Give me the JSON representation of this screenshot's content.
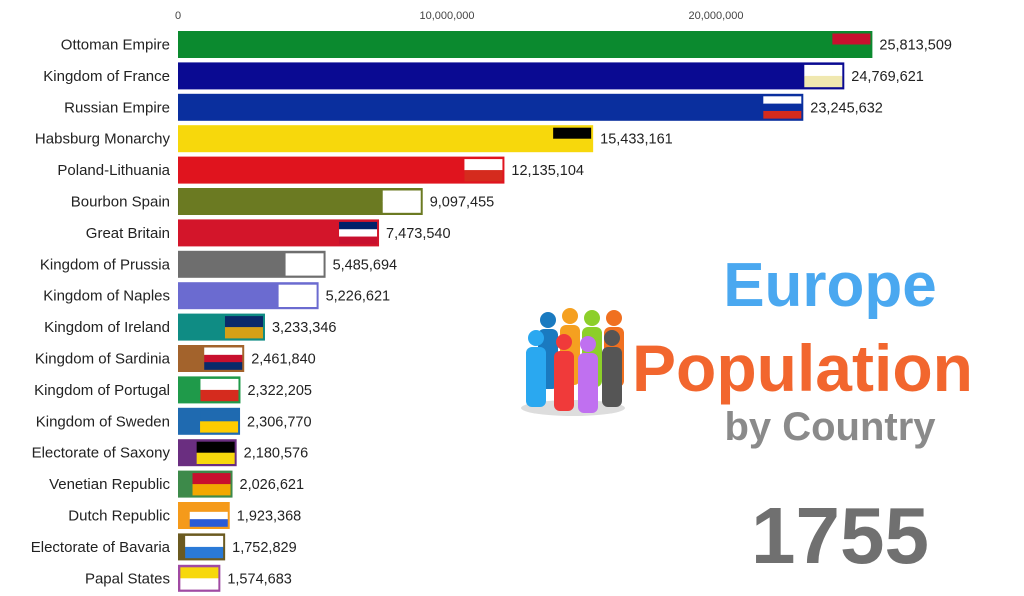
{
  "chart_data": {
    "type": "bar",
    "orientation": "horizontal",
    "x_ticks": [
      0,
      10000000,
      20000000
    ],
    "x_tick_labels": [
      "0",
      "10,000,000",
      "20,000,000"
    ],
    "xlim": [
      0,
      26000000
    ],
    "axis_position": "top",
    "grid": false,
    "categories": [
      "Ottoman Empire",
      "Kingdom of France",
      "Russian Empire",
      "Habsburg Monarchy",
      "Poland-Lithuania",
      "Bourbon Spain",
      "Great Britain",
      "Kingdom of Prussia",
      "Kingdom of Naples",
      "Kingdom of Ireland",
      "Kingdom of Sardinia",
      "Kingdom of Portugal",
      "Kingdom of Sweden",
      "Electorate of Saxony",
      "Venetian Republic",
      "Dutch Republic",
      "Electorate of Bavaria",
      "Papal States"
    ],
    "values": [
      25813509,
      24769621,
      23245632,
      15433161,
      12135104,
      9097455,
      7473540,
      5485694,
      5226621,
      3233346,
      2461840,
      2322205,
      2306770,
      2180576,
      2026621,
      1923368,
      1752829,
      1574683
    ],
    "value_labels": [
      "25,813,509",
      "24,769,621",
      "23,245,632",
      "15,433,161",
      "12,135,104",
      "9,097,455",
      "7,473,540",
      "5,485,694",
      "5,226,621",
      "3,233,346",
      "2,461,840",
      "2,322,205",
      "2,306,770",
      "2,180,576",
      "2,026,621",
      "1,923,368",
      "1,752,829",
      "1,574,683"
    ],
    "colors": [
      "#0b8a2f",
      "#0a0a92",
      "#0a2f9e",
      "#f7d80c",
      "#e0141e",
      "#6b7a22",
      "#d3152a",
      "#6e6e6e",
      "#6b6bd0",
      "#0f8c84",
      "#a3632c",
      "#1f9a4a",
      "#1f6ab0",
      "#6a2e80",
      "#3d8a4a",
      "#f59a1a",
      "#6b5a20",
      "#a04aa3"
    ],
    "flags": [
      [
        "#c8102e",
        "#0b8a2f"
      ],
      [
        "#ffffff",
        "#f0e8b0"
      ],
      [
        "#ffffff",
        "#0a2fa0",
        "#d52b1e"
      ],
      [
        "#000000",
        "#f7d80c"
      ],
      [
        "#ffffff",
        "#d52b1e"
      ],
      [
        "#ffffff",
        "#ffffff"
      ],
      [
        "#012169",
        "#ffffff",
        "#c8102e"
      ],
      [
        "#ffffff",
        "#ffffff"
      ],
      [
        "#ffffff",
        "#ffffff"
      ],
      [
        "#0a2a6a",
        "#d4a017"
      ],
      [
        "#ffffff",
        "#c8102e",
        "#0a2a6a"
      ],
      [
        "#ffffff",
        "#d52b1e"
      ],
      [
        "#1f6ab0",
        "#fecc00"
      ],
      [
        "#000000",
        "#f7d80c"
      ],
      [
        "#c8102e",
        "#f2a800"
      ],
      [
        "#f59a1a",
        "#ffffff",
        "#2a5bd7"
      ],
      [
        "#ffffff",
        "#2a7ad7"
      ],
      [
        "#f7d80c",
        "#ffffff"
      ]
    ]
  },
  "title": {
    "line1": "Europe",
    "line2": "Population",
    "line3": "by Country"
  },
  "year": "1755"
}
